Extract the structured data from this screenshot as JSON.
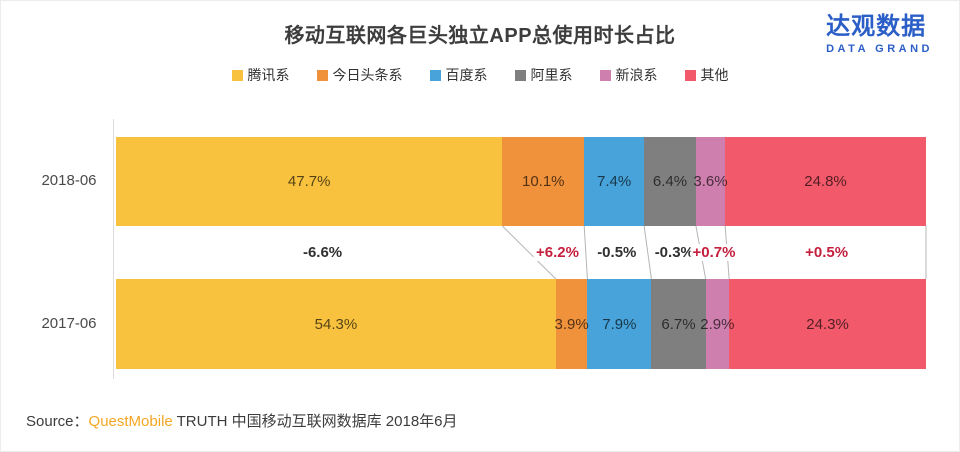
{
  "title": "移动互联网各巨头独立APP总使用时长占比",
  "logo": {
    "cn": "达观数据",
    "en": "DATA GRAND",
    "color": "#2B5FC7"
  },
  "chart_data": {
    "type": "bar",
    "stacked": true,
    "orientation": "horizontal",
    "title": "移动互联网各巨头独立APP总使用时长占比",
    "categories": [
      "2018-06",
      "2017-06"
    ],
    "series": [
      {
        "name": "腾讯系",
        "color": "#F8C23F",
        "values": [
          47.7,
          54.3
        ]
      },
      {
        "name": "今日头条系",
        "color": "#F0913B",
        "values": [
          10.1,
          3.9
        ]
      },
      {
        "name": "百度系",
        "color": "#47A3DA",
        "values": [
          7.4,
          7.9
        ]
      },
      {
        "name": "阿里系",
        "color": "#7F7F7F",
        "values": [
          6.4,
          6.7
        ]
      },
      {
        "name": "新浪系",
        "color": "#CF7FAD",
        "values": [
          3.6,
          2.9
        ]
      },
      {
        "name": "其他",
        "color": "#F2596A",
        "values": [
          24.8,
          24.3
        ]
      }
    ],
    "changes": [
      {
        "label": "-6.6%",
        "positive": false
      },
      {
        "label": "+6.2%",
        "positive": true
      },
      {
        "label": "-0.5%",
        "positive": false
      },
      {
        "label": "-0.3%",
        "positive": false
      },
      {
        "label": "+0.7%",
        "positive": true
      },
      {
        "label": "+0.5%",
        "positive": true
      }
    ],
    "value_suffix": "%",
    "xlim": [
      0,
      100
    ],
    "legend_position": "top",
    "grid": false,
    "colors": {
      "change_positive": "#C51F3E",
      "change_negative": "#2f2f2f",
      "connector_line": "#b5b5b5",
      "axis_line": "#dcdcdc"
    }
  },
  "source": {
    "prefix": "Source：",
    "brand": "QuestMobile",
    "brand_color": "#F5A623",
    "rest": " TRUTH 中国移动互联网数据库 2018年6月"
  }
}
